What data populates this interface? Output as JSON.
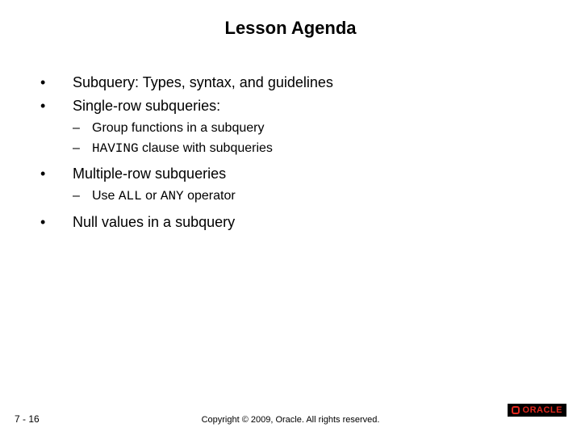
{
  "title": "Lesson Agenda",
  "bullets": {
    "b1": "Subquery: Types, syntax, and guidelines",
    "b2": "Single-row subqueries:",
    "b2s1": "Group functions in a subquery",
    "b2s2_code": "HAVING",
    "b2s2_rest": " clause with subqueries",
    "b3": "Multiple-row subqueries",
    "b3s1_pre": "Use ",
    "b3s1_code1": "ALL",
    "b3s1_mid": " or ",
    "b3s1_code2": "ANY",
    "b3s1_post": " operator",
    "b4": "Null values in a subquery"
  },
  "marks": {
    "bullet": "•",
    "dash": "–"
  },
  "footer": {
    "page": "7 - 16",
    "copyright": "Copyright © 2009, Oracle. All rights reserved.",
    "logo_text": "ORACLE"
  },
  "colors": {
    "text": "#000000",
    "background": "#ffffff",
    "oracle_red": "#e1261c",
    "logo_bg": "#000000"
  }
}
